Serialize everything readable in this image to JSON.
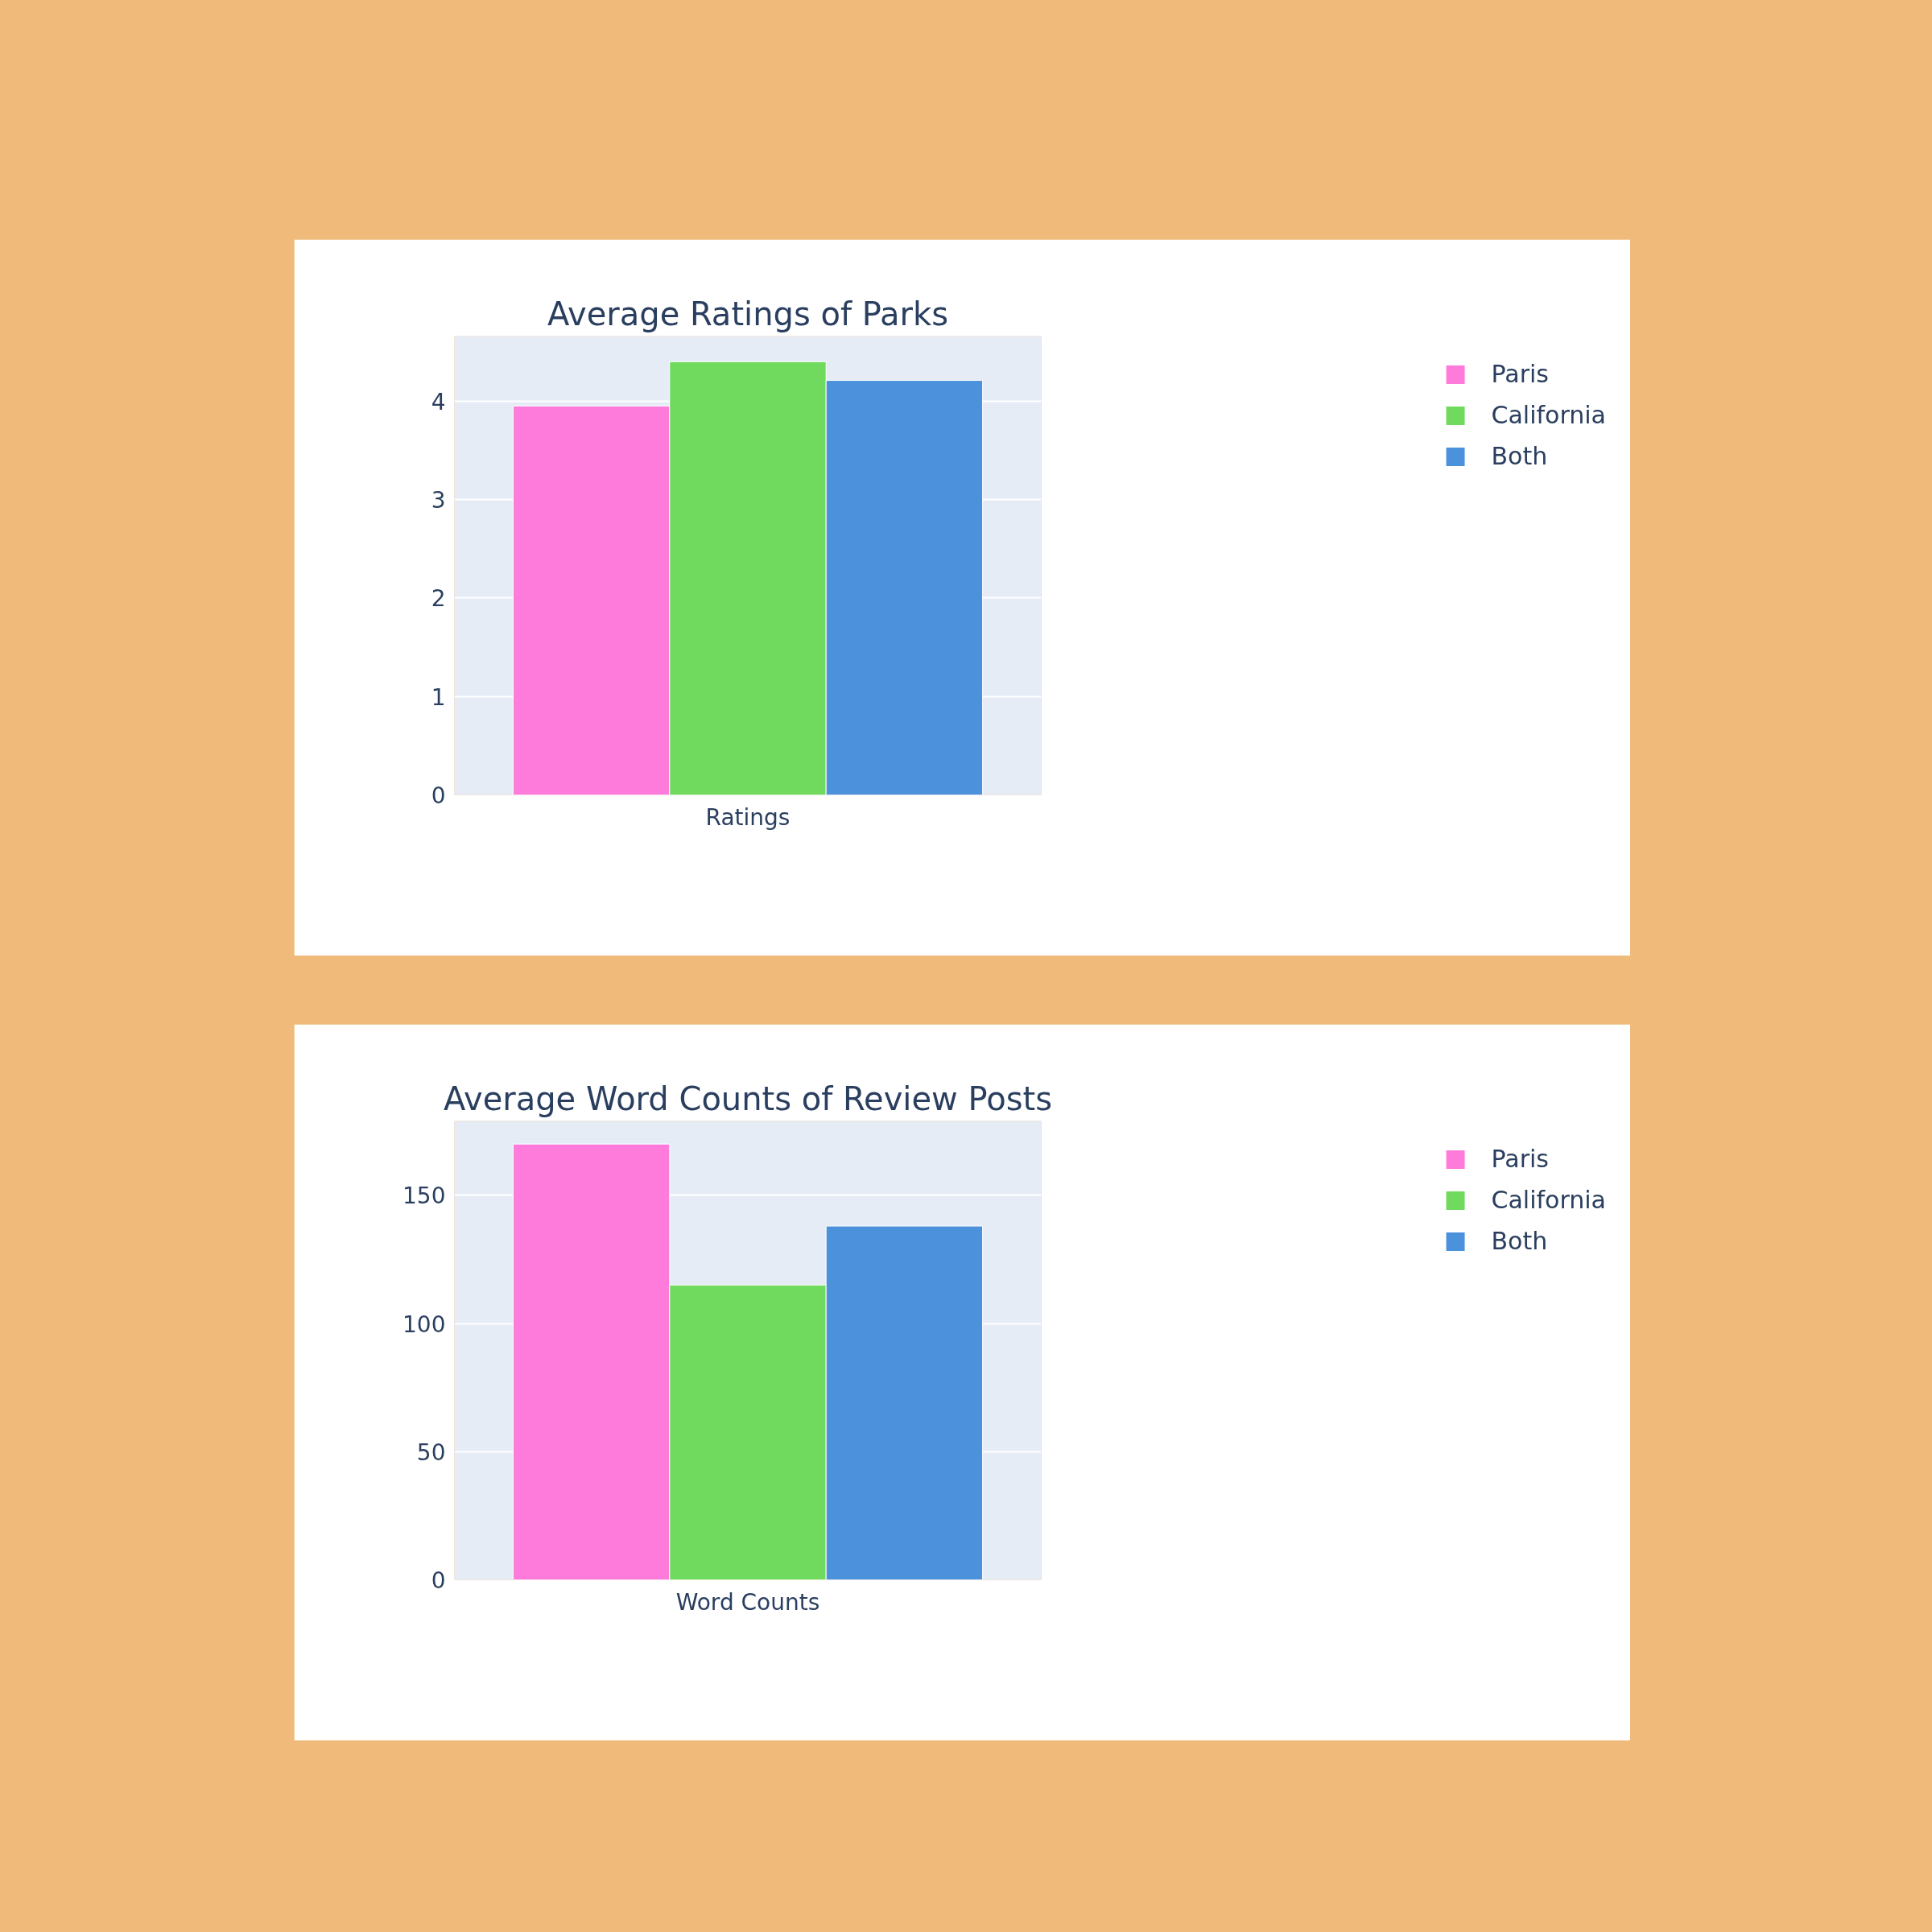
{
  "chart_data": [
    {
      "type": "bar",
      "title": "Average Ratings of Parks",
      "categories": [
        "Ratings"
      ],
      "series": [
        {
          "name": "Paris",
          "color": "#ff7bdb",
          "values": [
            3.95
          ]
        },
        {
          "name": "California",
          "color": "#70da5e",
          "values": [
            4.4
          ]
        },
        {
          "name": "Both",
          "color": "#4c91dc",
          "values": [
            4.21
          ]
        }
      ],
      "ylim": [
        0,
        4.66
      ],
      "yticks": [
        0,
        1,
        2,
        3,
        4
      ],
      "grid": "y",
      "legend": "top right"
    },
    {
      "type": "bar",
      "title": "Average Word Counts of Review Posts",
      "categories": [
        "Word Counts"
      ],
      "series": [
        {
          "name": "Paris",
          "color": "#ff7bdb",
          "values": [
            170
          ]
        },
        {
          "name": "California",
          "color": "#70da5e",
          "values": [
            115
          ]
        },
        {
          "name": "Both",
          "color": "#4c91dc",
          "values": [
            138
          ]
        }
      ],
      "ylim": [
        0,
        179
      ],
      "yticks": [
        0,
        50,
        100,
        150
      ],
      "grid": "y",
      "legend": "top right"
    }
  ]
}
